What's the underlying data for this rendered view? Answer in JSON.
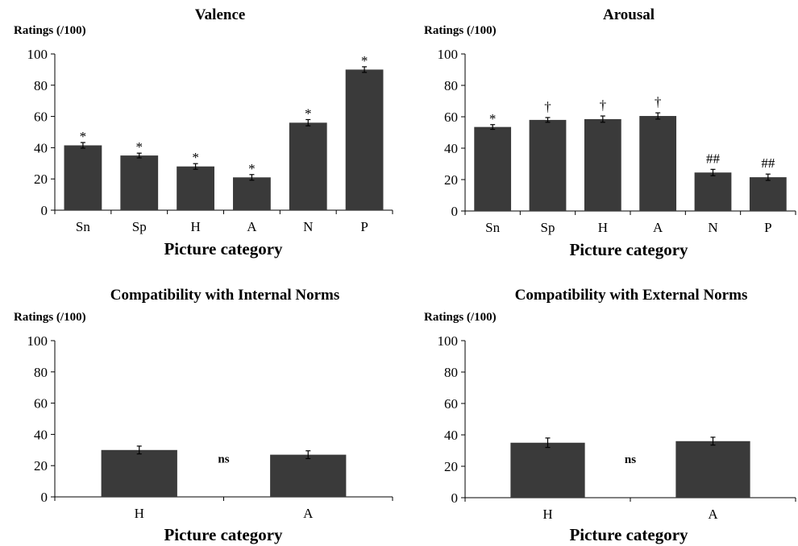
{
  "chart_data": [
    {
      "type": "bar",
      "title": "Valence",
      "ylabel": "Ratings (/100)",
      "xlabel": "Picture category",
      "ylim": [
        0,
        100
      ],
      "yticks": [
        0,
        20,
        40,
        60,
        80,
        100
      ],
      "categories": [
        "Sn",
        "Sp",
        "H",
        "A",
        "N",
        "P"
      ],
      "values": [
        41.5,
        35,
        28,
        21,
        56,
        90
      ],
      "errors": [
        1.8,
        1.5,
        1.8,
        1.8,
        2,
        1.8
      ],
      "annotations": [
        "*",
        "*",
        "*",
        "*",
        "*",
        "*"
      ],
      "between_label": "",
      "bar_color": "#3a3a3a"
    },
    {
      "type": "bar",
      "title": "Arousal",
      "ylabel": "Ratings (/100)",
      "xlabel": "Picture category",
      "ylim": [
        0,
        100
      ],
      "yticks": [
        0,
        20,
        40,
        60,
        80,
        100
      ],
      "categories": [
        "Sn",
        "Sp",
        "H",
        "A",
        "N",
        "P"
      ],
      "values": [
        53.5,
        58,
        58.5,
        60.5,
        24.5,
        21.5
      ],
      "errors": [
        1.5,
        1.5,
        2,
        2,
        2,
        2
      ],
      "annotations": [
        "*",
        "†",
        "†",
        "†",
        "##",
        "##"
      ],
      "between_label": "",
      "bar_color": "#3a3a3a"
    },
    {
      "type": "bar",
      "title": "Compatibility with Internal Norms",
      "ylabel": "Ratings (/100)",
      "xlabel": "Picture category",
      "ylim": [
        0,
        100
      ],
      "yticks": [
        0,
        20,
        40,
        60,
        80,
        100
      ],
      "categories": [
        "H",
        "A"
      ],
      "values": [
        30,
        27
      ],
      "errors": [
        2.5,
        2.5
      ],
      "annotations": [
        "",
        ""
      ],
      "between_label": "ns",
      "bar_color": "#3a3a3a"
    },
    {
      "type": "bar",
      "title": "Compatibility with External Norms",
      "ylabel": "Ratings (/100)",
      "xlabel": "Picture category",
      "ylim": [
        0,
        100
      ],
      "yticks": [
        0,
        20,
        40,
        60,
        80,
        100
      ],
      "categories": [
        "H",
        "A"
      ],
      "values": [
        35,
        36
      ],
      "errors": [
        3,
        2.5
      ],
      "annotations": [
        "",
        ""
      ],
      "between_label": "ns",
      "bar_color": "#3a3a3a"
    }
  ]
}
